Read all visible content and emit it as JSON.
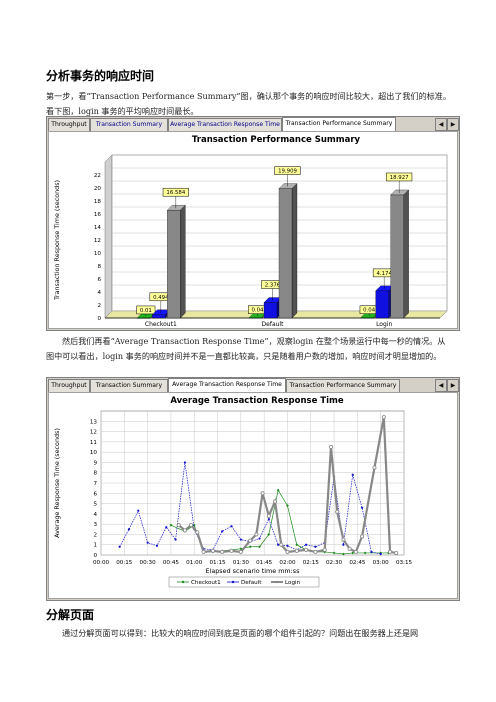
{
  "section1": {
    "heading": "分析事务的响应时间",
    "para1": "第一步，看“Transaction Performance Summary”图，确认那个事务的响应时间比较大，超出了我们的标准。看下图，login 事务的平均响应时间最长。",
    "para2": "然后我们再看“Average Transaction Response Time”，观察login 在整个场景运行中每一秒的情况。从图中可以看出，login 事务的响应时间并不是一直都比较高，只是随着用户数的增加，响应时间才明显增加的。"
  },
  "section2": {
    "heading": "分解页面",
    "para1": "通过分解页面可以得到：比较大的响应时间到底是页面的哪个组件引起的？问题出在服务器上还是网"
  },
  "window1": {
    "tabs": [
      "Throughput",
      "Transaction Summary",
      "Average Transaction Response Time",
      "Transaction Performance Summary"
    ],
    "active_tab": 3
  },
  "window2": {
    "tabs": [
      "Throughput",
      "Transaction Summary",
      "Average Transaction Response Time",
      "Transaction Performance Summary"
    ],
    "active_tab": 2
  },
  "chart_data": [
    {
      "type": "bar",
      "title": "Transaction Performance Summary",
      "ylabel": "Transaction Response Time (seconds)",
      "xlabel": "",
      "ylim": [
        0,
        24
      ],
      "yticks": [
        "0",
        "2",
        "4",
        "6",
        "8",
        "10",
        "12",
        "14",
        "16",
        "18",
        "20",
        "22"
      ],
      "categories": [
        "Checkout1",
        "Default",
        "Login"
      ],
      "series": [
        {
          "role": "min",
          "color": "#1a8a1a",
          "values": [
            0.01,
            0.04,
            0.04
          ],
          "labels": [
            "0.01",
            "0.04",
            "0.04"
          ]
        },
        {
          "role": "avg",
          "color": "#1010e0",
          "values": [
            0.494,
            2.376,
            4.174
          ],
          "labels": [
            "0.494",
            "2.376",
            "4.174"
          ]
        },
        {
          "role": "max",
          "color": "#888888",
          "values": [
            16.584,
            19.909,
            18.927
          ],
          "labels": [
            "16.584",
            "19.909",
            "18.927"
          ]
        }
      ]
    },
    {
      "type": "line",
      "title": "Average Transaction Response Time",
      "ylabel": "Average Response Time (seconds)",
      "xlabel": "Elapsed scenario time mm:ss",
      "ylim": [
        0,
        14
      ],
      "yticks": [
        "0",
        "1",
        "2",
        "3",
        "4",
        "5",
        "6",
        "7",
        "8",
        "9",
        "10",
        "11",
        "12",
        "13"
      ],
      "xticks": [
        "00:00",
        "00:15",
        "00:30",
        "00:45",
        "01:00",
        "01:15",
        "01:30",
        "01:45",
        "02:00",
        "02:15",
        "02:30",
        "02:45",
        "03:00",
        "03:15"
      ],
      "series": [
        {
          "name": "Checkout1",
          "color": "#1a8a1a",
          "x": [
            45,
            54,
            60,
            66,
            72,
            78,
            84,
            90,
            96,
            102,
            108,
            114,
            120,
            126,
            132,
            138,
            144,
            150,
            156,
            162,
            170,
            180,
            185
          ],
          "y": [
            2.9,
            2.3,
            2.9,
            0.3,
            0.3,
            0.4,
            0.5,
            0.6,
            0.8,
            0.8,
            2.0,
            6.3,
            4.8,
            1.0,
            0.5,
            0.3,
            0.3,
            0.2,
            0.1,
            0.2,
            0.2,
            0.2,
            0.2
          ]
        },
        {
          "name": "Default",
          "color": "#1010d0",
          "x": [
            12,
            18,
            24,
            30,
            36,
            42,
            48,
            54,
            60,
            66,
            72,
            78,
            84,
            90,
            96,
            102,
            108,
            114,
            120,
            126,
            132,
            138,
            144,
            150,
            156,
            162,
            168,
            174,
            180
          ],
          "y": [
            0.8,
            2.5,
            4.3,
            1.2,
            0.9,
            2.7,
            1.5,
            9.0,
            2.5,
            0.6,
            0.5,
            2.3,
            2.8,
            1.5,
            1.3,
            1.6,
            3.5,
            1.0,
            0.9,
            0.5,
            1.0,
            0.8,
            1.2,
            7.6,
            1.0,
            7.8,
            4.6,
            0.3,
            0.1
          ]
        },
        {
          "name": "Login",
          "color": "#888888",
          "x": [
            50,
            54,
            58,
            62,
            66,
            72,
            78,
            84,
            90,
            96,
            100,
            104,
            108,
            112,
            116,
            120,
            126,
            132,
            138,
            144,
            148,
            152,
            156,
            160,
            164,
            168,
            176,
            182,
            186,
            190
          ],
          "y": [
            2.9,
            2.4,
            2.9,
            2.2,
            0.3,
            0.4,
            0.3,
            0.4,
            0.3,
            1.4,
            2.0,
            6.0,
            3.8,
            5.2,
            1.0,
            0.3,
            0.4,
            0.5,
            0.3,
            0.5,
            10.5,
            4.2,
            1.5,
            0.6,
            0.3,
            1.8,
            8.5,
            13.4,
            0.3,
            0.2
          ]
        }
      ]
    }
  ]
}
